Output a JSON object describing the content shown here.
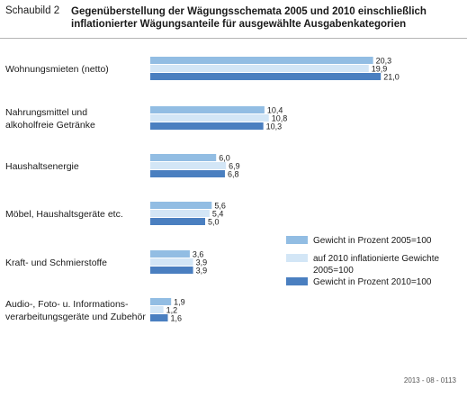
{
  "figure_label": "Schaubild 2",
  "title_lines": [
    "Gegenüberstellung der Wägungsschemata 2005 und 2010 einschließlich",
    "inflationierter Wägungsanteile für ausgewählte Ausgabenkategorien"
  ],
  "footer_code": "2013 - 08 - 0113",
  "colors": {
    "s2005": "#92bde3",
    "s2010infl": "#d3e6f6",
    "s2010": "#4a7fc0"
  },
  "chart_data": {
    "type": "bar",
    "orientation": "horizontal",
    "categories": [
      [
        "Wohnungsmieten (netto)"
      ],
      [
        "Nahrungsmittel und",
        "alkoholfreie Getränke"
      ],
      [
        "Haushaltsenergie"
      ],
      [
        "Möbel, Haushaltsgeräte etc."
      ],
      [
        "Kraft- und Schmierstoffe"
      ],
      [
        "Audio-, Foto- u. Informations-",
        "verarbeitungsgeräte und Zubehör"
      ]
    ],
    "series": [
      {
        "name": "Gewicht in Prozent 2005=100",
        "legend_lines": [
          "Gewicht in Prozent 2005=100"
        ],
        "color": "#92bde3",
        "values": [
          20.3,
          10.4,
          6.0,
          5.6,
          3.6,
          1.9
        ],
        "labels": [
          "20,3",
          "10,4",
          "6,0",
          "5,6",
          "3,6",
          "1,9"
        ]
      },
      {
        "name": "auf 2010 inflationierte Gewichte 2005=100",
        "legend_lines": [
          "auf 2010 inflationierte Gewichte",
          "2005=100"
        ],
        "color": "#d3e6f6",
        "values": [
          19.9,
          10.8,
          6.9,
          5.4,
          3.9,
          1.2
        ],
        "labels": [
          "19,9",
          "10,8",
          "6,9",
          "5,4",
          "3,9",
          "1,2"
        ]
      },
      {
        "name": "Gewicht in Prozent 2010=100",
        "legend_lines": [
          "Gewicht in Prozent 2010=100"
        ],
        "color": "#4a7fc0",
        "values": [
          21.0,
          10.3,
          6.8,
          5.0,
          3.9,
          1.6
        ],
        "labels": [
          "21,0",
          "10,3",
          "6,8",
          "5,0",
          "3,9",
          "1,6"
        ]
      }
    ],
    "xlim": [
      0,
      21.5
    ],
    "grid": false,
    "legend": "bottom-right"
  }
}
